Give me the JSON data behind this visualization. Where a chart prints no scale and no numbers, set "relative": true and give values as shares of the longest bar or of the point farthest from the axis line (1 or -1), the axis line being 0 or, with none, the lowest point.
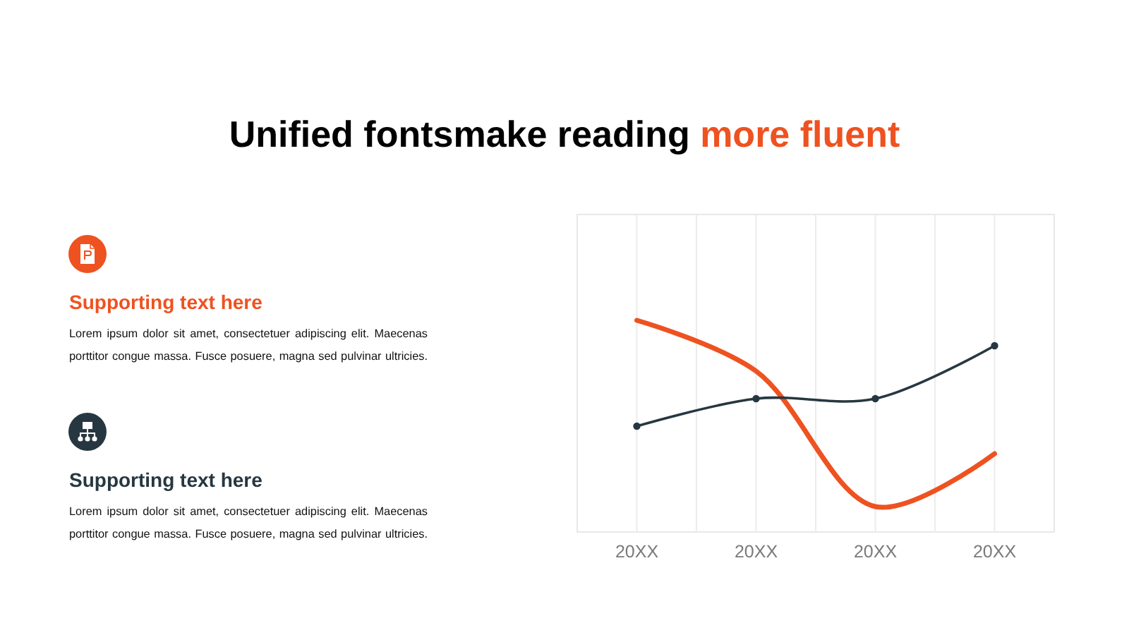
{
  "chart_data": {
    "type": "line",
    "title": "Unified fontsmake reading more fluent",
    "categories": [
      "20XX",
      "20XX",
      "20XX",
      "20XX"
    ],
    "relative": true,
    "grid": "x",
    "series": [
      {
        "color": "#ee5220",
        "values": [
          1,
          0.76,
          0.12,
          0.37
        ],
        "marker": "none"
      },
      {
        "color": "#273741",
        "values": [
          0.5,
          0.63,
          0.63,
          0.88
        ],
        "marker": "circle"
      }
    ],
    "annotations": [
      "Supporting text here",
      "Lorem ipsum dolor sit amet, consectetuer adipiscing elit. Maecenas porttitor congue massa. Fusce posuere, magna sed pulvinar ultricies.",
      "Supporting text here",
      "Lorem ipsum dolor sit amet, consectetuer adipiscing elit. Maecenas porttitor congue massa. Fusce posuere, magna sed pulvinar ultricies."
    ]
  }
}
